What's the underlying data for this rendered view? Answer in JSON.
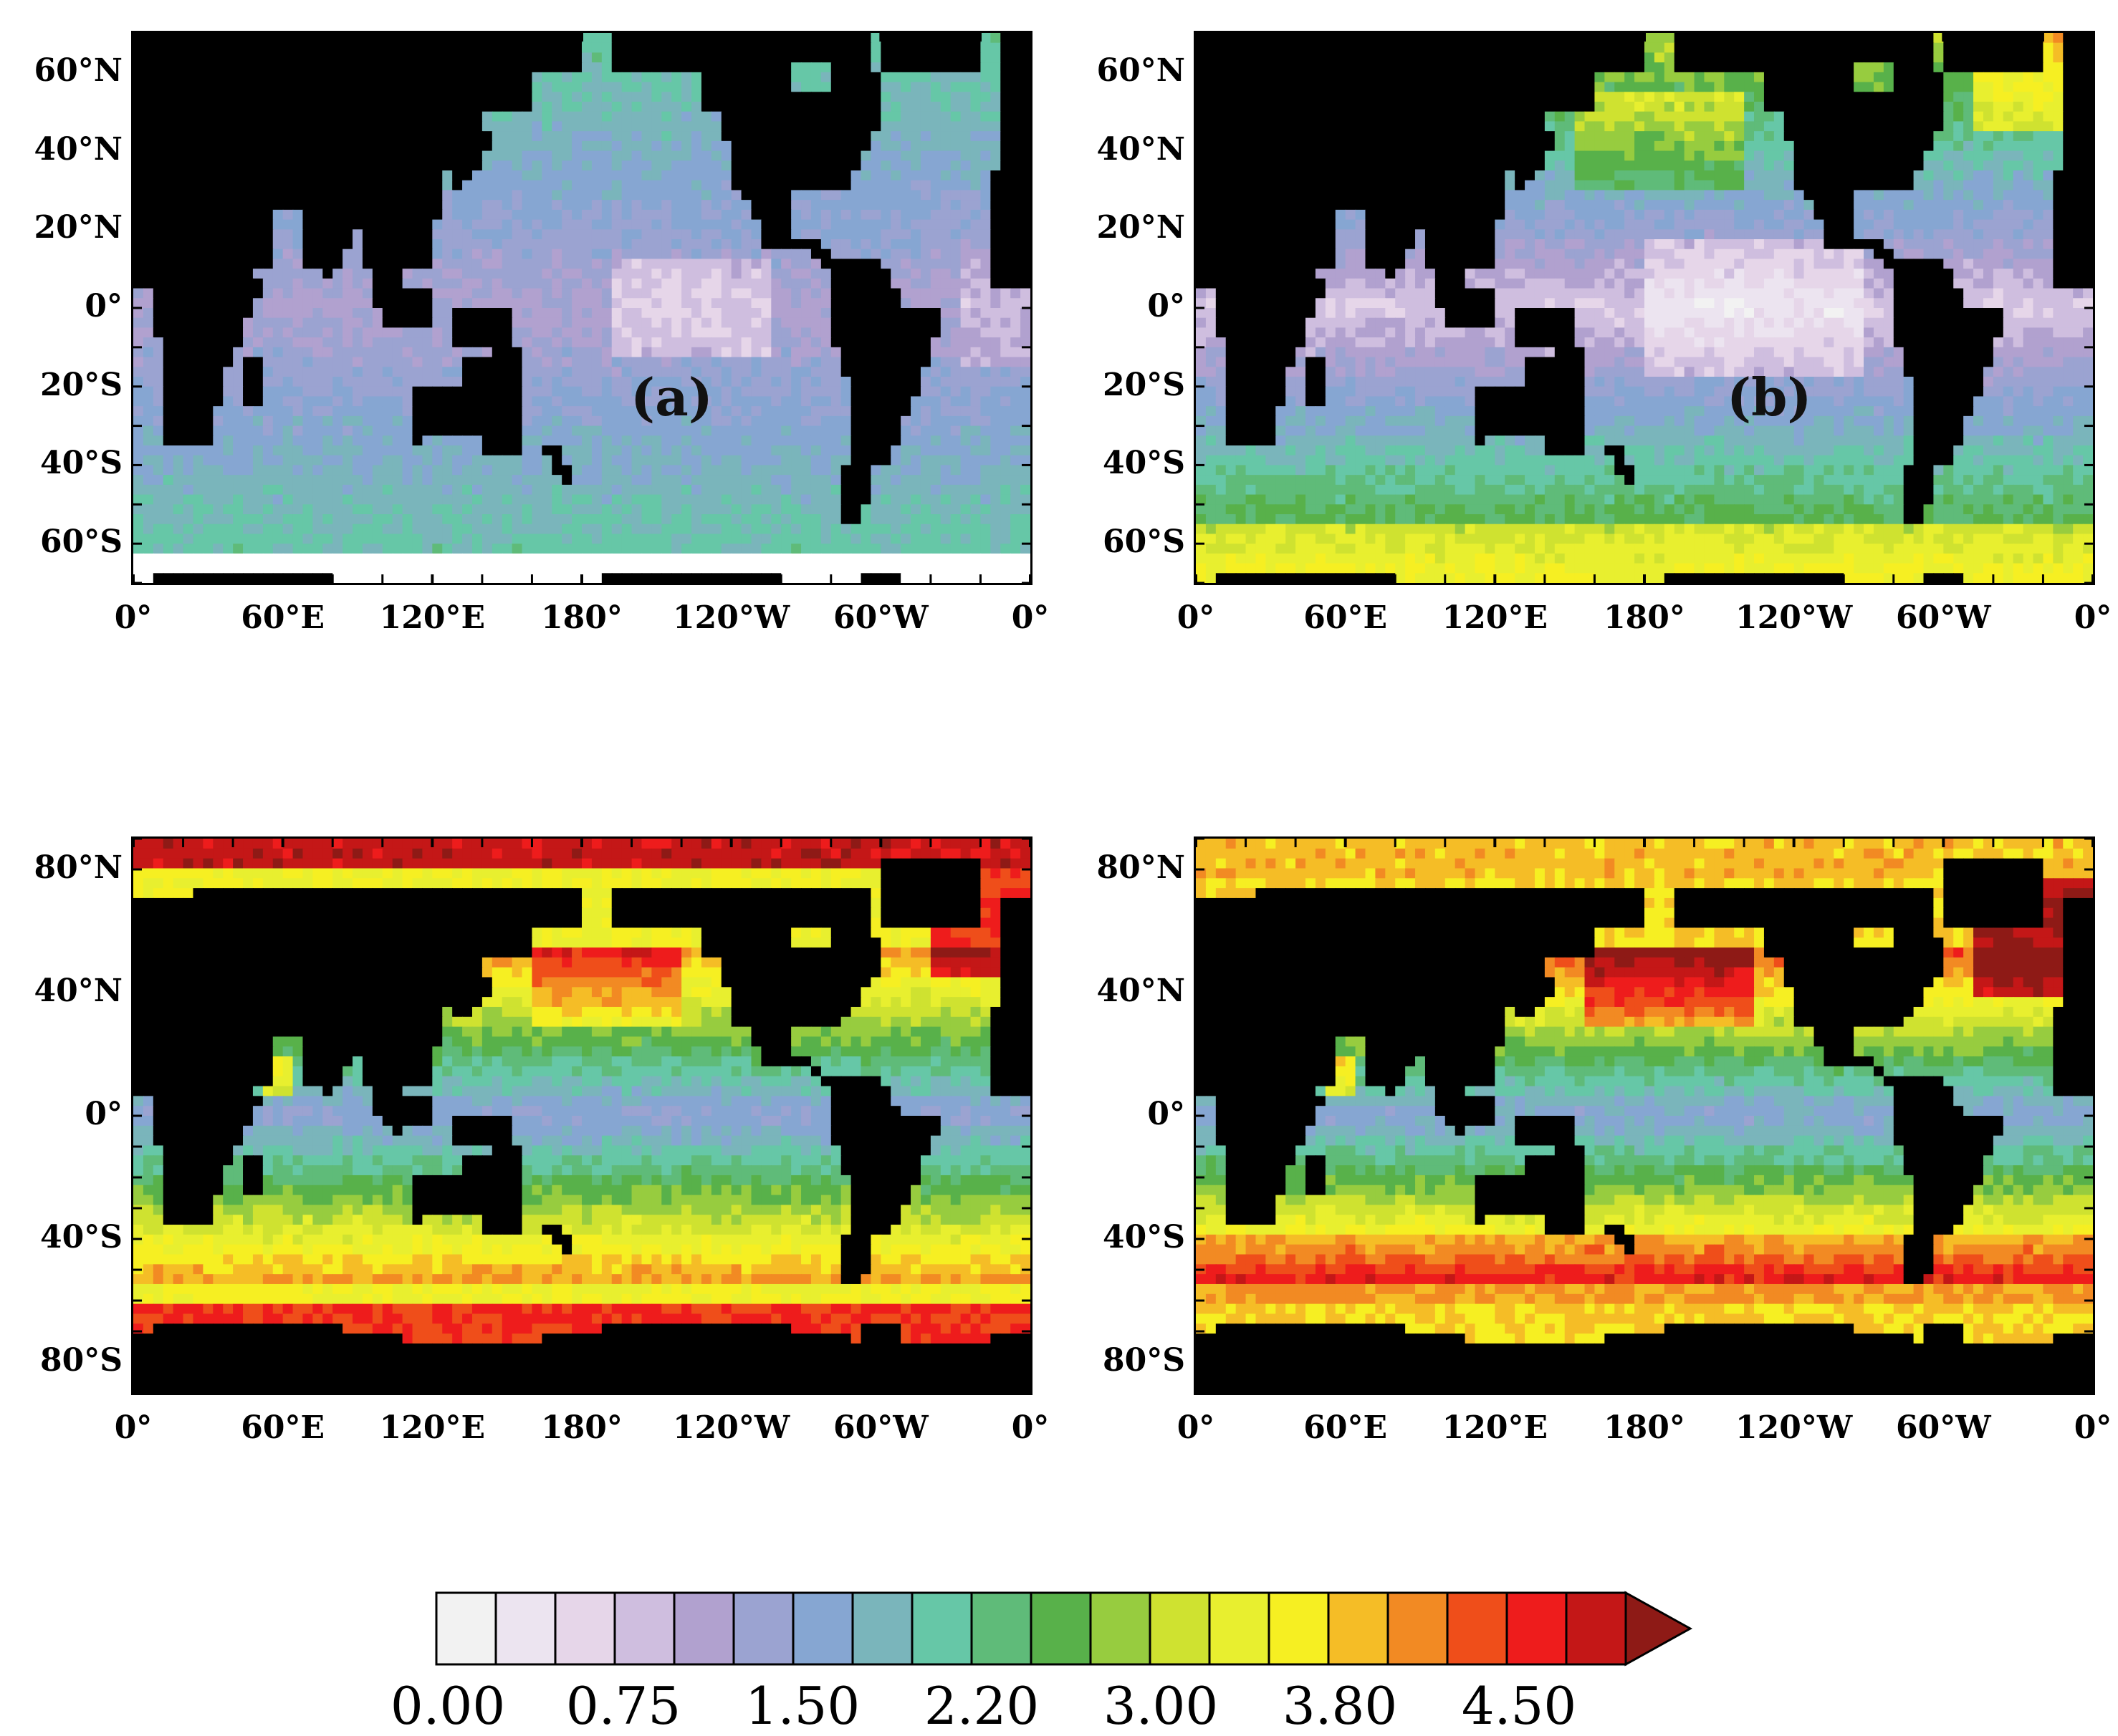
{
  "panels": [
    {
      "id": "a",
      "label": "(a)",
      "yticks": [
        "60°N",
        "40°N",
        "20°N",
        "0°",
        "20°S",
        "40°S",
        "60°S"
      ],
      "ylat": [
        60,
        40,
        20,
        0,
        -20,
        -40,
        -60
      ],
      "latRange": [
        70,
        -70
      ],
      "xticks": [
        "0°",
        "60°E",
        "120°E",
        "180°",
        "120°W",
        "60°W",
        "0°"
      ],
      "field": "swh_a"
    },
    {
      "id": "b",
      "label": "(b)",
      "yticks": [
        "60°N",
        "40°N",
        "20°N",
        "0°",
        "20°S",
        "40°S",
        "60°S"
      ],
      "ylat": [
        60,
        40,
        20,
        0,
        -20,
        -40,
        -60
      ],
      "latRange": [
        70,
        -70
      ],
      "xticks": [
        "0°",
        "60°E",
        "120°E",
        "180°",
        "120°W",
        "60°W",
        "0°"
      ],
      "field": "swh_b"
    },
    {
      "id": "c",
      "label": "",
      "yticks": [
        "80°N",
        "40°N",
        "0°",
        "40°S",
        "80°S"
      ],
      "ylat": [
        80,
        40,
        0,
        -40,
        -80
      ],
      "latRange": [
        90,
        -90
      ],
      "xticks": [
        "0°",
        "60°E",
        "120°E",
        "180°",
        "120°W",
        "60°W",
        "0°"
      ],
      "field": "swh_c"
    },
    {
      "id": "d",
      "label": "",
      "yticks": [
        "80°N",
        "40°N",
        "0°",
        "40°S",
        "80°S"
      ],
      "ylat": [
        80,
        40,
        0,
        -40,
        -80
      ],
      "latRange": [
        90,
        -90
      ],
      "xticks": [
        "0°",
        "60°E",
        "120°E",
        "180°",
        "120°W",
        "60°W",
        "0°"
      ],
      "field": "swh_d"
    }
  ],
  "colorbar": {
    "labels": [
      "0.00",
      "0.75",
      "1.50",
      "2.20",
      "3.00",
      "3.80",
      "4.50"
    ],
    "colors": [
      "#f2f2f2",
      "#ece4f0",
      "#e6d6e9",
      "#cfbedf",
      "#b1a1cf",
      "#9ba3d1",
      "#86a6d2",
      "#7ab5bb",
      "#66c7a7",
      "#5fbb79",
      "#58b14a",
      "#97cc3f",
      "#cfe230",
      "#e8ef2f",
      "#f6ef22",
      "#f5bd26",
      "#f28a23",
      "#ef4e1a",
      "#ee1c1c",
      "#c41717",
      "#8e1a16"
    ],
    "land_color": "#000000",
    "ice_color": "#ffffff"
  }
}
